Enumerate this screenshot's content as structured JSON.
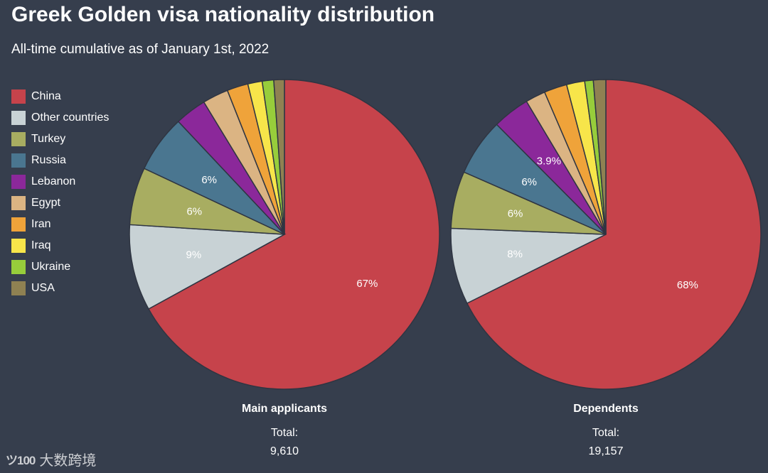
{
  "title": "Greek Golden visa nationality distribution",
  "subtitle": "All-time cumulative as of January 1st, 2022",
  "watermark": {
    "logo_text": "ツ100",
    "text": "大数跨境"
  },
  "chart_data": [
    {
      "type": "pie",
      "title": "Main applicants",
      "total_label": "Total:",
      "total_value": "9,610",
      "categories": [
        "China",
        "Other countries",
        "Turkey",
        "Russia",
        "Lebanon",
        "Egypt",
        "Iran",
        "Iraq",
        "Ukraine",
        "USA"
      ],
      "values": [
        67,
        9,
        6,
        6,
        3.3,
        2.7,
        2.2,
        1.5,
        1.2,
        1.1
      ],
      "labels": [
        "67%",
        "9%",
        "6%",
        "6%",
        "",
        "",
        "",
        "",
        "",
        ""
      ],
      "legend_placement": "left"
    },
    {
      "type": "pie",
      "title": "Dependents",
      "total_label": "Total:",
      "total_value": "19,157",
      "categories": [
        "China",
        "Other countries",
        "Turkey",
        "Russia",
        "Lebanon",
        "Egypt",
        "Iran",
        "Iraq",
        "Ukraine",
        "USA"
      ],
      "values": [
        68,
        8,
        6,
        6,
        3.9,
        2.1,
        2.4,
        1.9,
        0.9,
        1.3
      ],
      "labels": [
        "68%",
        "8%",
        "6%",
        "6%",
        "3.9%",
        "",
        "",
        "",
        "",
        ""
      ],
      "legend_placement": "left"
    }
  ],
  "legend": [
    {
      "label": "China",
      "color": "#c6434b"
    },
    {
      "label": "Other countries",
      "color": "#c8d2d5"
    },
    {
      "label": "Turkey",
      "color": "#a8ad61"
    },
    {
      "label": "Russia",
      "color": "#4a7690"
    },
    {
      "label": "Lebanon",
      "color": "#8b289a"
    },
    {
      "label": "Egypt",
      "color": "#dbb483"
    },
    {
      "label": "Iran",
      "color": "#efa33a"
    },
    {
      "label": "Iraq",
      "color": "#f7e54a"
    },
    {
      "label": "Ukraine",
      "color": "#97cd3b"
    },
    {
      "label": "USA",
      "color": "#8f8152"
    }
  ]
}
